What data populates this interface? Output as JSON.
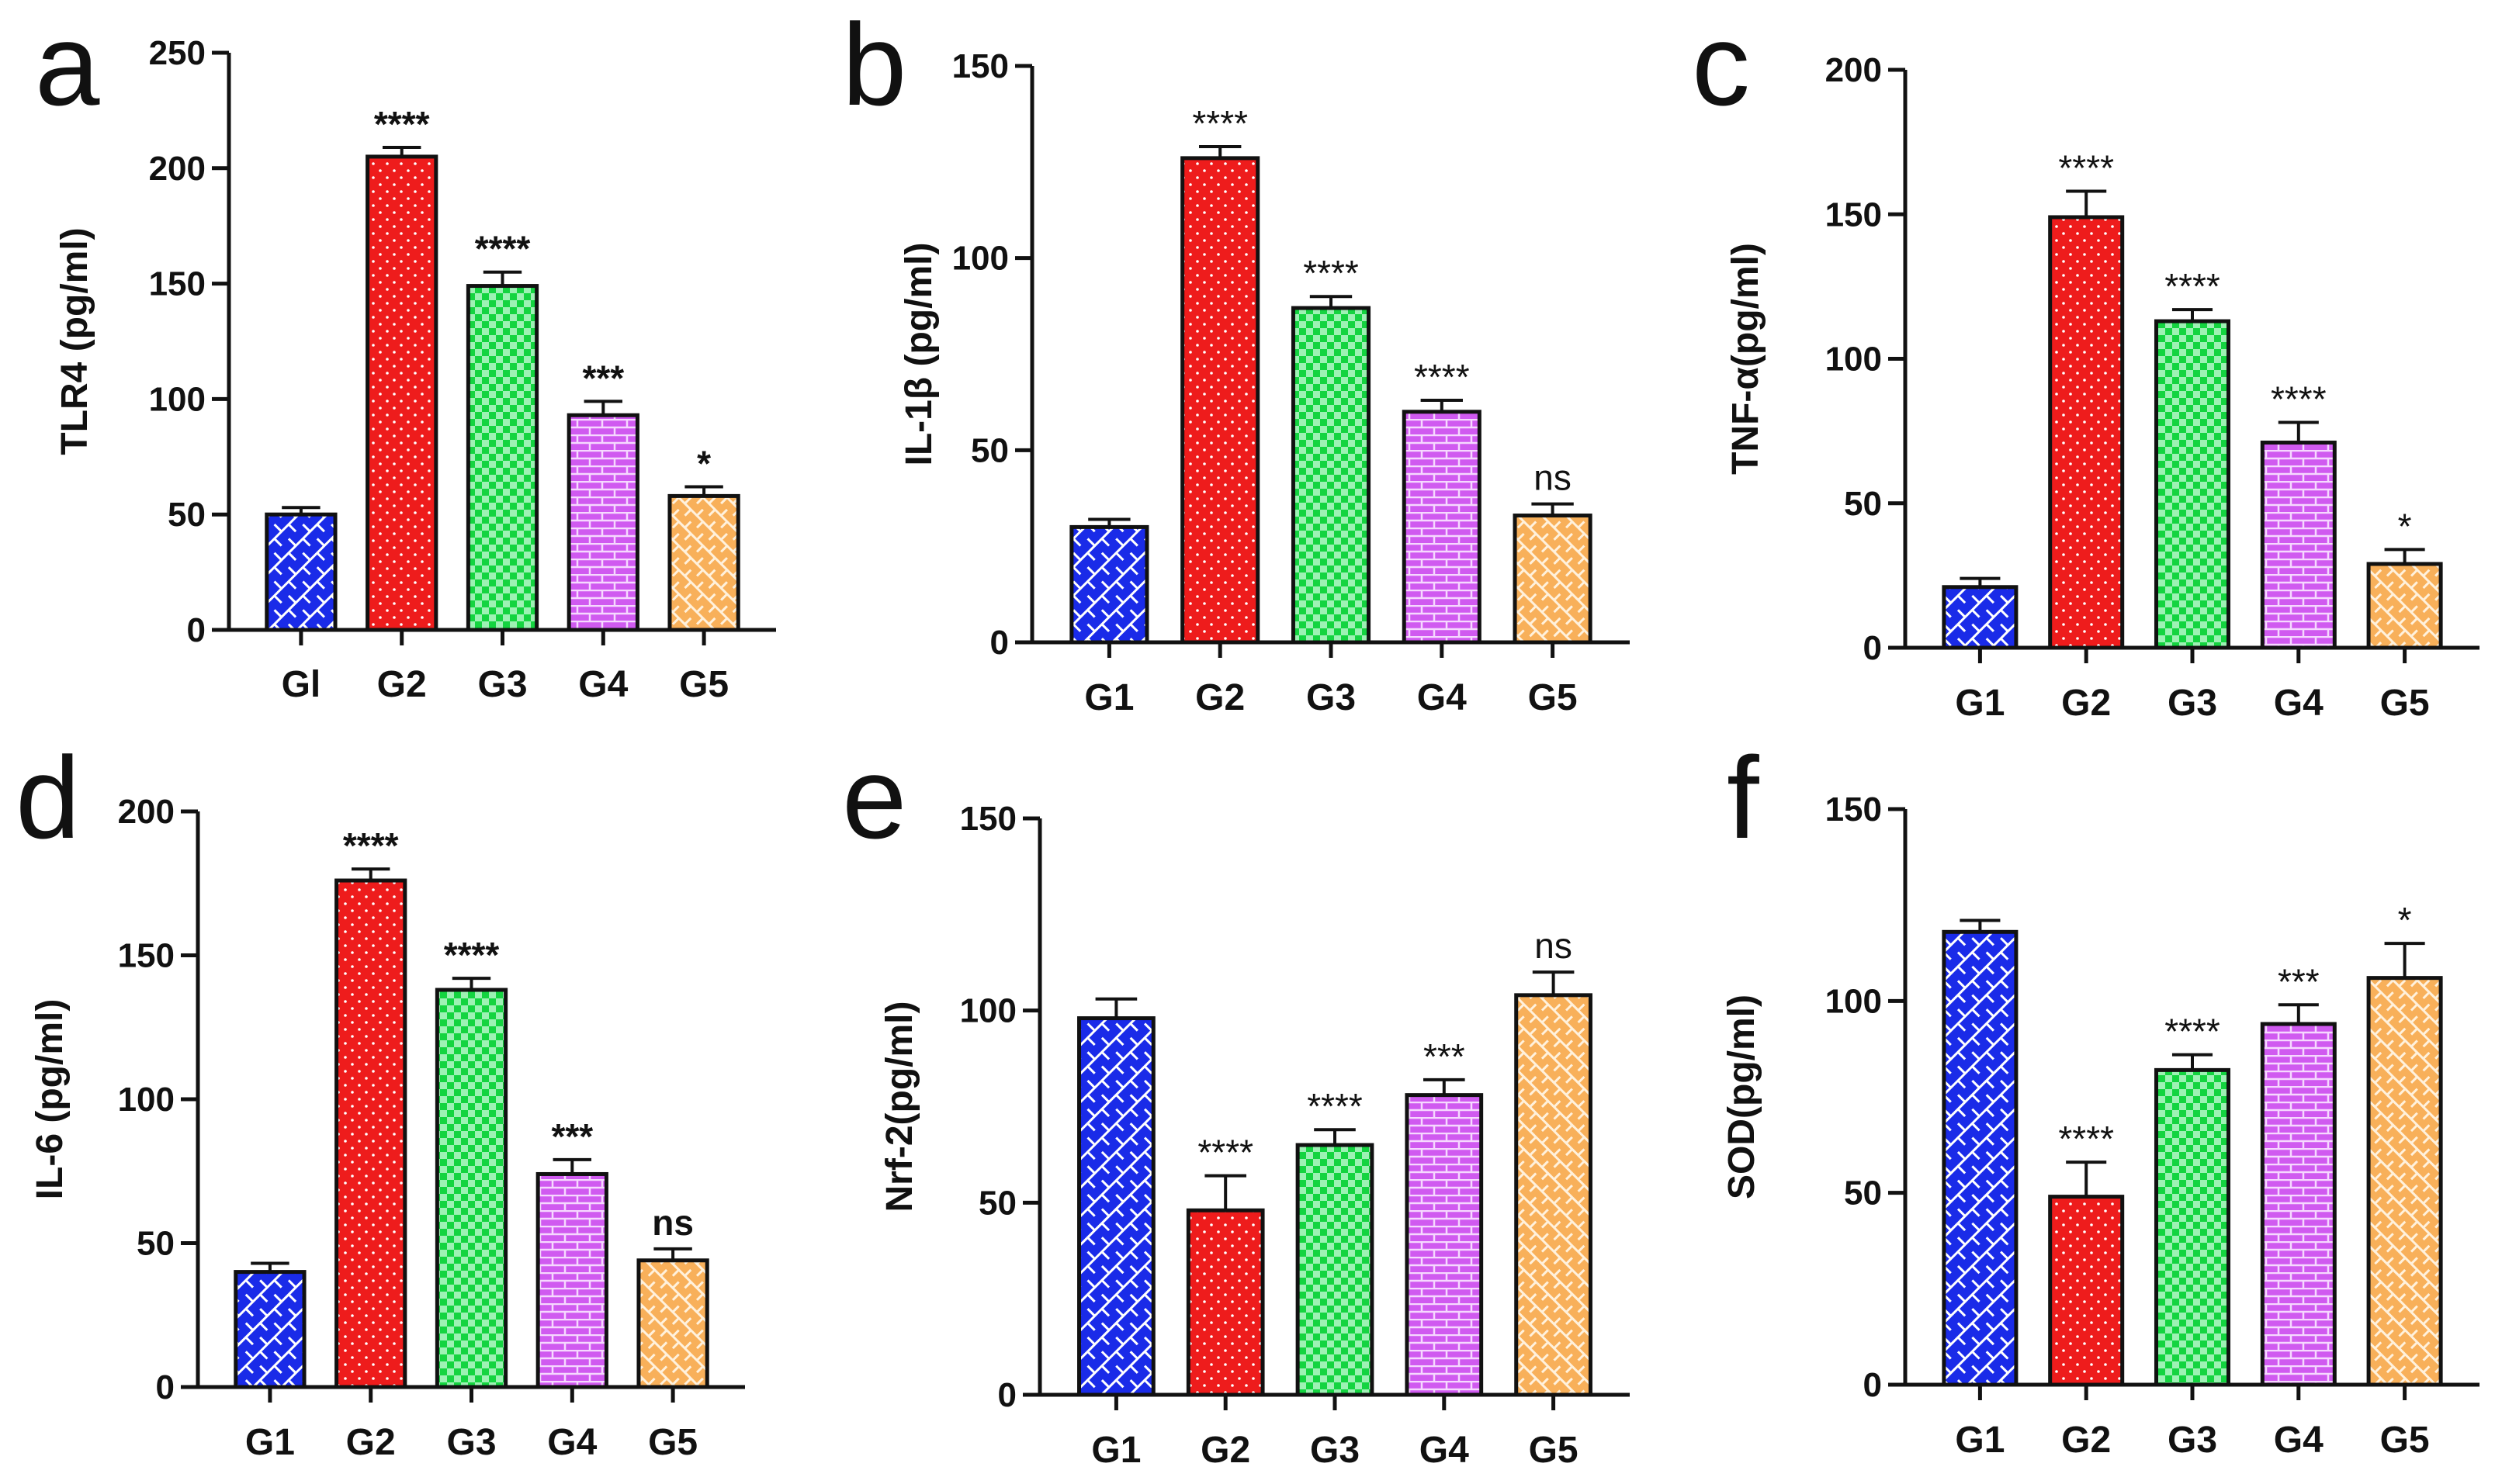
{
  "chart_data": [
    {
      "panel": "a",
      "type": "bar",
      "ylabel": "TLR4 (pg/ml)",
      "ylim": [
        0,
        250
      ],
      "yticks": [
        0,
        50,
        100,
        150,
        200,
        250
      ],
      "categories": [
        "Gl",
        "G2",
        "G3",
        "G4",
        "G5"
      ],
      "values": [
        50,
        205,
        149,
        93,
        58
      ],
      "errors": [
        3,
        4,
        6,
        6,
        4
      ],
      "significance": [
        "",
        "****",
        "****",
        "***",
        "*"
      ],
      "sig_bold": true
    },
    {
      "panel": "b",
      "type": "bar",
      "ylabel": "IL-1β (pg/ml)",
      "ylim": [
        0,
        150
      ],
      "yticks": [
        0,
        50,
        100,
        150
      ],
      "categories": [
        "G1",
        "G2",
        "G3",
        "G4",
        "G5"
      ],
      "values": [
        30,
        126,
        87,
        60,
        33
      ],
      "errors": [
        2,
        3,
        3,
        3,
        3
      ],
      "significance": [
        "",
        "****",
        "****",
        "****",
        "ns"
      ],
      "sig_bold": false
    },
    {
      "panel": "c",
      "type": "bar",
      "ylabel": "TNF-α(pg/ml)",
      "ylim": [
        0,
        200
      ],
      "yticks": [
        0,
        50,
        100,
        150,
        200
      ],
      "categories": [
        "G1",
        "G2",
        "G3",
        "G4",
        "G5"
      ],
      "values": [
        21,
        149,
        113,
        71,
        29
      ],
      "errors": [
        3,
        9,
        4,
        7,
        5
      ],
      "significance": [
        "",
        "****",
        "****",
        "****",
        "*"
      ],
      "sig_bold": false
    },
    {
      "panel": "d",
      "type": "bar",
      "ylabel": "IL-6 (pg/ml)",
      "ylim": [
        0,
        200
      ],
      "yticks": [
        0,
        50,
        100,
        150,
        200
      ],
      "categories": [
        "G1",
        "G2",
        "G3",
        "G4",
        "G5"
      ],
      "values": [
        40,
        176,
        138,
        74,
        44
      ],
      "errors": [
        3,
        4,
        4,
        5,
        4
      ],
      "significance": [
        "",
        "****",
        "****",
        "***",
        "ns"
      ],
      "sig_bold": true
    },
    {
      "panel": "e",
      "type": "bar",
      "ylabel": "Nrf-2(pg/ml)",
      "ylim": [
        0,
        150
      ],
      "yticks": [
        0,
        50,
        100,
        150
      ],
      "categories": [
        "G1",
        "G2",
        "G3",
        "G4",
        "G5"
      ],
      "values": [
        98,
        48,
        65,
        78,
        104
      ],
      "errors": [
        5,
        9,
        4,
        4,
        6
      ],
      "significance": [
        "",
        "****",
        "****",
        "***",
        "ns"
      ],
      "sig_bold": false
    },
    {
      "panel": "f",
      "type": "bar",
      "ylabel": "SOD(pg/ml)",
      "ylim": [
        0,
        150
      ],
      "yticks": [
        0,
        50,
        100,
        150
      ],
      "categories": [
        "G1",
        "G2",
        "G3",
        "G4",
        "G5"
      ],
      "values": [
        118,
        49,
        82,
        94,
        106
      ],
      "errors": [
        3,
        9,
        4,
        5,
        9
      ],
      "significance": [
        "",
        "****",
        "****",
        "***",
        "*"
      ],
      "sig_bold": false
    }
  ],
  "colors": {
    "G1": "#1a2be8",
    "G2": "#ee1c1c",
    "G3": "#14d440",
    "G4": "#d05af0",
    "G5": "#f8b05a",
    "axis": "#111111"
  }
}
